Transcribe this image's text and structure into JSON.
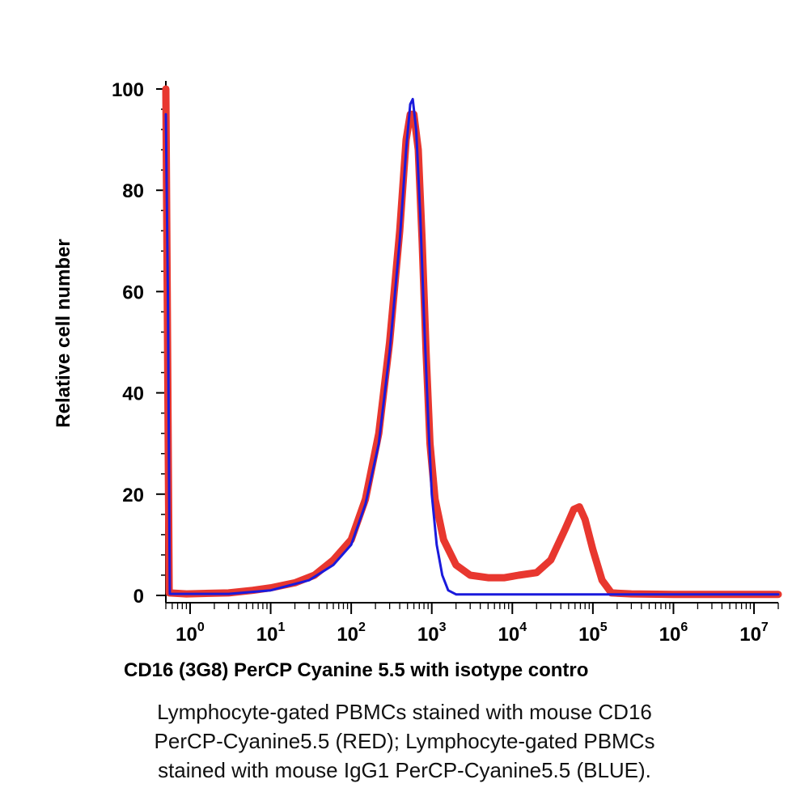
{
  "chart_data": {
    "type": "line",
    "xlabel": "CD16 (3G8) PerCP Cyanine 5.5 with isotype contro",
    "ylabel": "Relative cell number",
    "xscale": "log",
    "xlim": [
      0.5,
      20000000
    ],
    "ylim": [
      0,
      100
    ],
    "y_ticks": [
      "0",
      "20",
      "40",
      "60",
      "80",
      "100"
    ],
    "x_ticks": [
      {
        "base": "10",
        "exp": "0"
      },
      {
        "base": "10",
        "exp": "1"
      },
      {
        "base": "10",
        "exp": "2"
      },
      {
        "base": "10",
        "exp": "3"
      },
      {
        "base": "10",
        "exp": "4"
      },
      {
        "base": "10",
        "exp": "5"
      },
      {
        "base": "10",
        "exp": "6"
      },
      {
        "base": "10",
        "exp": "7"
      }
    ],
    "grid": false,
    "series": [
      {
        "name": "RED",
        "color": "#e8372f",
        "points": [
          [
            0.5,
            100
          ],
          [
            0.52,
            60
          ],
          [
            0.55,
            0.5
          ],
          [
            0.9,
            0.3
          ],
          [
            3,
            0.5
          ],
          [
            6,
            1
          ],
          [
            10,
            1.5
          ],
          [
            20,
            2.5
          ],
          [
            35,
            4
          ],
          [
            60,
            7
          ],
          [
            100,
            11
          ],
          [
            150,
            19
          ],
          [
            220,
            32
          ],
          [
            300,
            50
          ],
          [
            400,
            72
          ],
          [
            480,
            90
          ],
          [
            540,
            95
          ],
          [
            600,
            95
          ],
          [
            680,
            88
          ],
          [
            760,
            70
          ],
          [
            850,
            48
          ],
          [
            950,
            30
          ],
          [
            1100,
            19
          ],
          [
            1400,
            11
          ],
          [
            2000,
            6
          ],
          [
            3000,
            4
          ],
          [
            5000,
            3.5
          ],
          [
            8000,
            3.5
          ],
          [
            12000,
            4
          ],
          [
            20000,
            4.5
          ],
          [
            30000,
            7
          ],
          [
            45000,
            13
          ],
          [
            58000,
            17
          ],
          [
            68000,
            17.5
          ],
          [
            80000,
            15
          ],
          [
            100000,
            9
          ],
          [
            130000,
            3
          ],
          [
            170000,
            0.5
          ],
          [
            300000,
            0.3
          ],
          [
            1000000,
            0.2
          ],
          [
            20000000,
            0.2
          ]
        ]
      },
      {
        "name": "BLUE",
        "color": "#1a1adc",
        "points": [
          [
            0.5,
            95
          ],
          [
            0.53,
            60
          ],
          [
            0.56,
            0.3
          ],
          [
            3,
            0.3
          ],
          [
            10,
            1
          ],
          [
            30,
            3
          ],
          [
            60,
            6
          ],
          [
            100,
            10
          ],
          [
            150,
            18
          ],
          [
            220,
            30
          ],
          [
            300,
            48
          ],
          [
            400,
            70
          ],
          [
            480,
            88
          ],
          [
            540,
            97
          ],
          [
            580,
            98
          ],
          [
            640,
            92
          ],
          [
            720,
            75
          ],
          [
            800,
            55
          ],
          [
            900,
            35
          ],
          [
            1000,
            20
          ],
          [
            1150,
            10
          ],
          [
            1350,
            4
          ],
          [
            1600,
            1
          ],
          [
            2000,
            0.2
          ],
          [
            20000000,
            0.2
          ]
        ]
      }
    ],
    "caption": [
      "Lymphocyte-gated PBMCs stained with mouse CD16",
      "PerCP-Cyanine5.5 (RED); Lymphocyte-gated PBMCs",
      "stained with mouse IgG1 PerCP-Cyanine5.5 (BLUE)."
    ]
  }
}
